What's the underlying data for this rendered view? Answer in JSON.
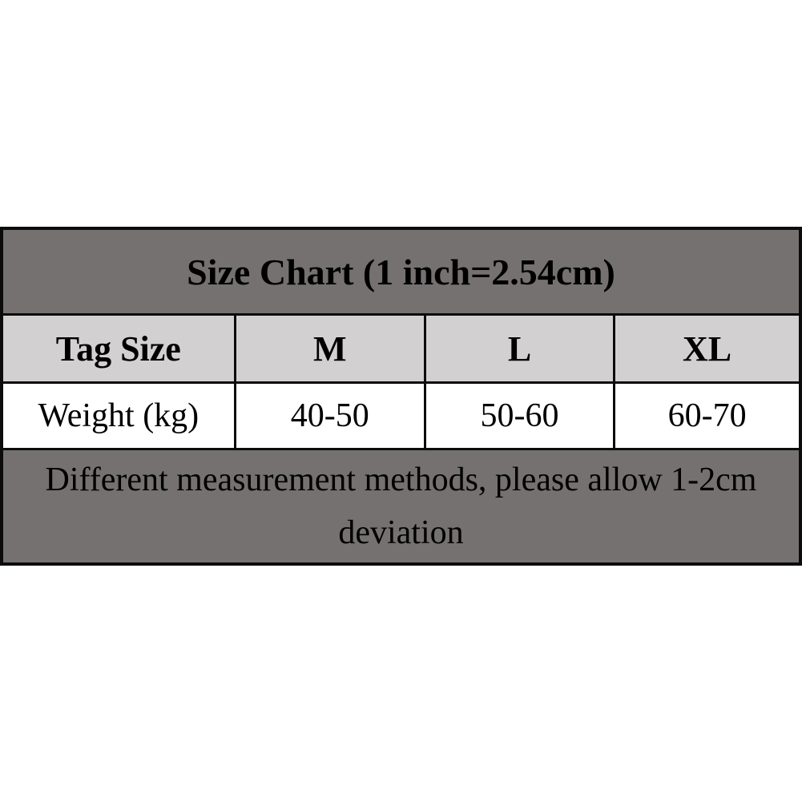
{
  "chart_data": {
    "type": "table",
    "title": "Size Chart (1 inch=2.54cm)",
    "columns": [
      "Tag Size",
      "M",
      "L",
      "XL"
    ],
    "rows": [
      [
        "Weight (kg)",
        "40-50",
        "50-60",
        "60-70"
      ]
    ],
    "note": "Different measurement methods, please allow 1-2cm deviation",
    "layout_hints": {
      "title_row_spans_all_columns": true,
      "note_row_spans_all_columns": true,
      "grid": "on"
    }
  },
  "colors": {
    "page_bg": "#ffffff",
    "table_border": "#0c0c0c",
    "title_row_bg": "#757171",
    "size_header_row_bg": "#d2d0d0",
    "value_row_bg": "#ffffff",
    "note_row_bg": "#757171",
    "text": "#000000"
  }
}
